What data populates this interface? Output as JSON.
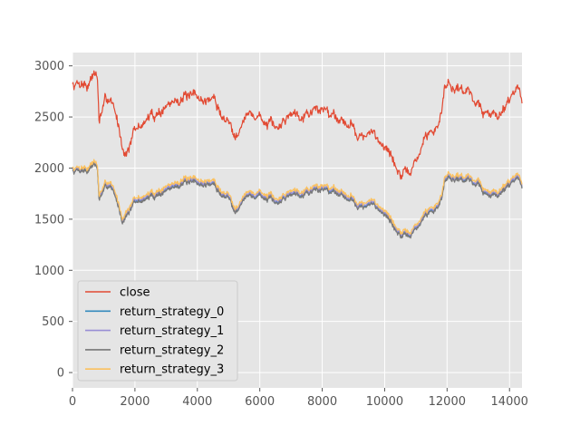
{
  "chart_data": {
    "type": "line",
    "title": "",
    "xlabel": "",
    "ylabel": "",
    "xlim": [
      0,
      14400
    ],
    "ylim": [
      -150,
      3130
    ],
    "x_ticks": [
      0,
      2000,
      4000,
      6000,
      8000,
      10000,
      12000,
      14000
    ],
    "y_ticks": [
      0,
      500,
      1000,
      1500,
      2000,
      2500,
      3000
    ],
    "grid": true,
    "legend_position": "lower-left",
    "x_knots": [
      0,
      300,
      500,
      700,
      800,
      850,
      1000,
      1200,
      1400,
      1600,
      1700,
      2000,
      2300,
      2500,
      3000,
      3300,
      3500,
      3800,
      4000,
      4300,
      4500,
      4700,
      5000,
      5200,
      5500,
      5800,
      6000,
      6300,
      6500,
      6800,
      7000,
      7500,
      8000,
      8500,
      9000,
      9300,
      9600,
      10000,
      10300,
      10500,
      10700,
      11000,
      11300,
      11700,
      11850,
      11950,
      12200,
      12500,
      12800,
      13000,
      13300,
      13600,
      13800,
      14000,
      14200,
      14400
    ],
    "series": [
      {
        "name": "close",
        "color": "#E24A33",
        "values": [
          2820,
          2850,
          2820,
          2950,
          2880,
          2450,
          2600,
          2700,
          2500,
          2250,
          2150,
          2350,
          2450,
          2500,
          2600,
          2650,
          2720,
          2660,
          2700,
          2650,
          2700,
          2550,
          2450,
          2350,
          2500,
          2520,
          2500,
          2420,
          2350,
          2480,
          2550,
          2560,
          2580,
          2520,
          2400,
          2300,
          2320,
          2250,
          2050,
          1950,
          1900,
          2050,
          2300,
          2400,
          2620,
          2850,
          2820,
          2780,
          2720,
          2620,
          2500,
          2550,
          2600,
          2700,
          2800,
          2700
        ]
      },
      {
        "name": "return_strategy_0",
        "color": "#348ABD",
        "values": [
          1980,
          2000,
          1990,
          2060,
          2000,
          1700,
          1780,
          1850,
          1700,
          1500,
          1550,
          1660,
          1700,
          1720,
          1790,
          1820,
          1880,
          1840,
          1860,
          1840,
          1860,
          1760,
          1720,
          1600,
          1720,
          1730,
          1740,
          1700,
          1640,
          1720,
          1760,
          1780,
          1800,
          1780,
          1680,
          1620,
          1640,
          1580,
          1420,
          1360,
          1310,
          1400,
          1540,
          1620,
          1750,
          1920,
          1920,
          1900,
          1880,
          1850,
          1720,
          1760,
          1810,
          1860,
          1920,
          1850
        ]
      },
      {
        "name": "return_strategy_1",
        "color": "#988ED5",
        "values": [
          1990,
          2010,
          2000,
          2070,
          2010,
          1710,
          1790,
          1860,
          1710,
          1510,
          1560,
          1670,
          1710,
          1730,
          1800,
          1830,
          1890,
          1850,
          1870,
          1850,
          1870,
          1770,
          1730,
          1610,
          1730,
          1740,
          1750,
          1710,
          1650,
          1730,
          1770,
          1790,
          1810,
          1790,
          1690,
          1630,
          1650,
          1590,
          1430,
          1370,
          1320,
          1410,
          1550,
          1630,
          1760,
          1930,
          1930,
          1910,
          1890,
          1860,
          1730,
          1770,
          1820,
          1870,
          1930,
          1860
        ]
      },
      {
        "name": "return_strategy_2",
        "color": "#777777",
        "values": [
          1970,
          1990,
          1980,
          2050,
          1990,
          1690,
          1770,
          1840,
          1690,
          1490,
          1540,
          1650,
          1690,
          1710,
          1780,
          1810,
          1870,
          1830,
          1850,
          1830,
          1850,
          1750,
          1710,
          1590,
          1710,
          1720,
          1730,
          1690,
          1630,
          1710,
          1750,
          1770,
          1790,
          1770,
          1670,
          1610,
          1630,
          1570,
          1410,
          1350,
          1300,
          1390,
          1530,
          1610,
          1740,
          1910,
          1910,
          1890,
          1870,
          1840,
          1710,
          1750,
          1800,
          1850,
          1910,
          1840
        ]
      },
      {
        "name": "return_strategy_3",
        "color": "#FBC15E",
        "values": [
          2000,
          2020,
          2010,
          2080,
          2020,
          1730,
          1810,
          1880,
          1730,
          1530,
          1580,
          1690,
          1730,
          1750,
          1820,
          1850,
          1910,
          1870,
          1890,
          1870,
          1890,
          1790,
          1750,
          1630,
          1750,
          1760,
          1770,
          1730,
          1670,
          1750,
          1790,
          1810,
          1830,
          1810,
          1710,
          1650,
          1670,
          1610,
          1450,
          1390,
          1340,
          1430,
          1570,
          1650,
          1780,
          1950,
          1950,
          1930,
          1910,
          1880,
          1750,
          1790,
          1840,
          1890,
          1950,
          1880
        ]
      }
    ]
  }
}
